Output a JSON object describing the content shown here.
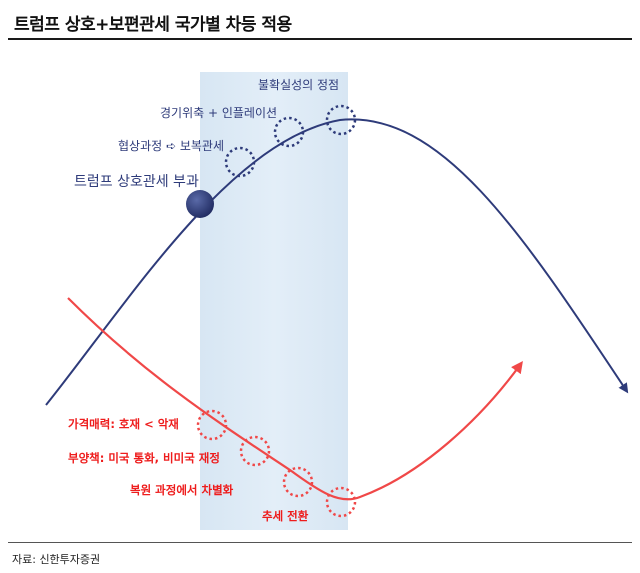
{
  "title": "트럼프 상호+보편관세 국가별 차등 적용",
  "source": "자료: 신한투자증권",
  "blue_labels": {
    "peak": "불확실성의 정점",
    "slowdown": "경기위축 + 인플레이션",
    "negotiation": "협상과정 ➪ 보복관세",
    "imposition": "트럼프 상호관세 부과"
  },
  "red_labels": {
    "price": "가격매력: 호재 < 악재",
    "fiscal": "부양책: 미국 통화, 비미국 재정",
    "recovery": "복원 과정에서 차별화",
    "reversal": "추세 전환"
  },
  "colors": {
    "blue_curve": "#2e3b7a",
    "red_curve": "#f04848",
    "band": "#dbe8f4",
    "red_text": "#ee1c1c",
    "blue_text": "#2e3b7a"
  }
}
